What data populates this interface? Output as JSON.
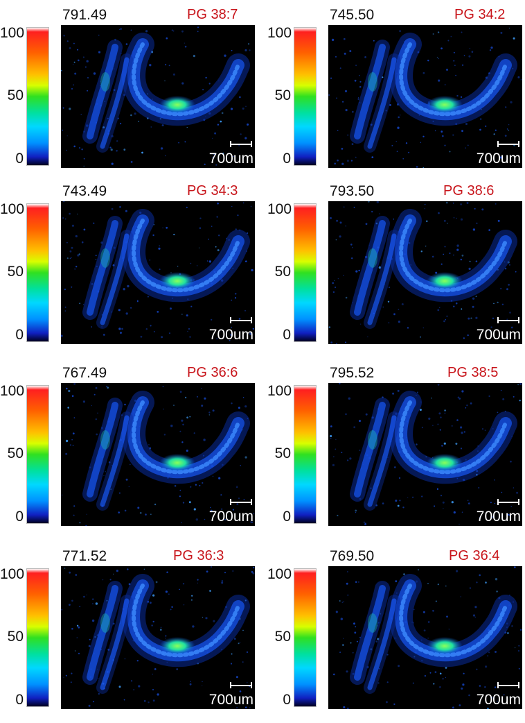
{
  "panels": [
    {
      "mz": "791.49",
      "lipid": "PG 38:7"
    },
    {
      "mz": "745.50",
      "lipid": "PG  34:2"
    },
    {
      "mz": "743.49",
      "lipid": "PG 34:3"
    },
    {
      "mz": "793.50",
      "lipid": "PG  38:6"
    },
    {
      "mz": "767.49",
      "lipid": "PG 36:6"
    },
    {
      "mz": "795.52",
      "lipid": "PG  38:5"
    },
    {
      "mz": "771.52",
      "lipid": "PG  36:3"
    },
    {
      "mz": "769.50",
      "lipid": "PG  36:4"
    }
  ],
  "colorbar": {
    "max_label": "100",
    "mid_label": "50",
    "min_label": "0"
  },
  "scale_bar": {
    "label": "700um"
  },
  "colors": {
    "label_red": "#c8151b",
    "background": "#000000",
    "signal_blue": "#1a5cff",
    "hotspot_green": "#6cff3c"
  }
}
